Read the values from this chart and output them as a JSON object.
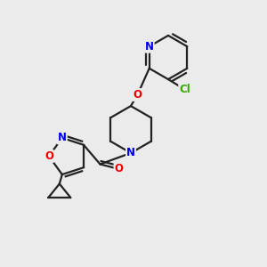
{
  "background_color": "#ebebeb",
  "bond_color": "#222222",
  "atom_colors": {
    "N": "#0000ee",
    "O": "#ee0000",
    "Cl": "#33aa00",
    "C": "#222222"
  },
  "atom_bg": "#ebebeb",
  "bond_width": 1.6,
  "font_size_atom": 8.5,
  "font_size_cl": 8.5
}
